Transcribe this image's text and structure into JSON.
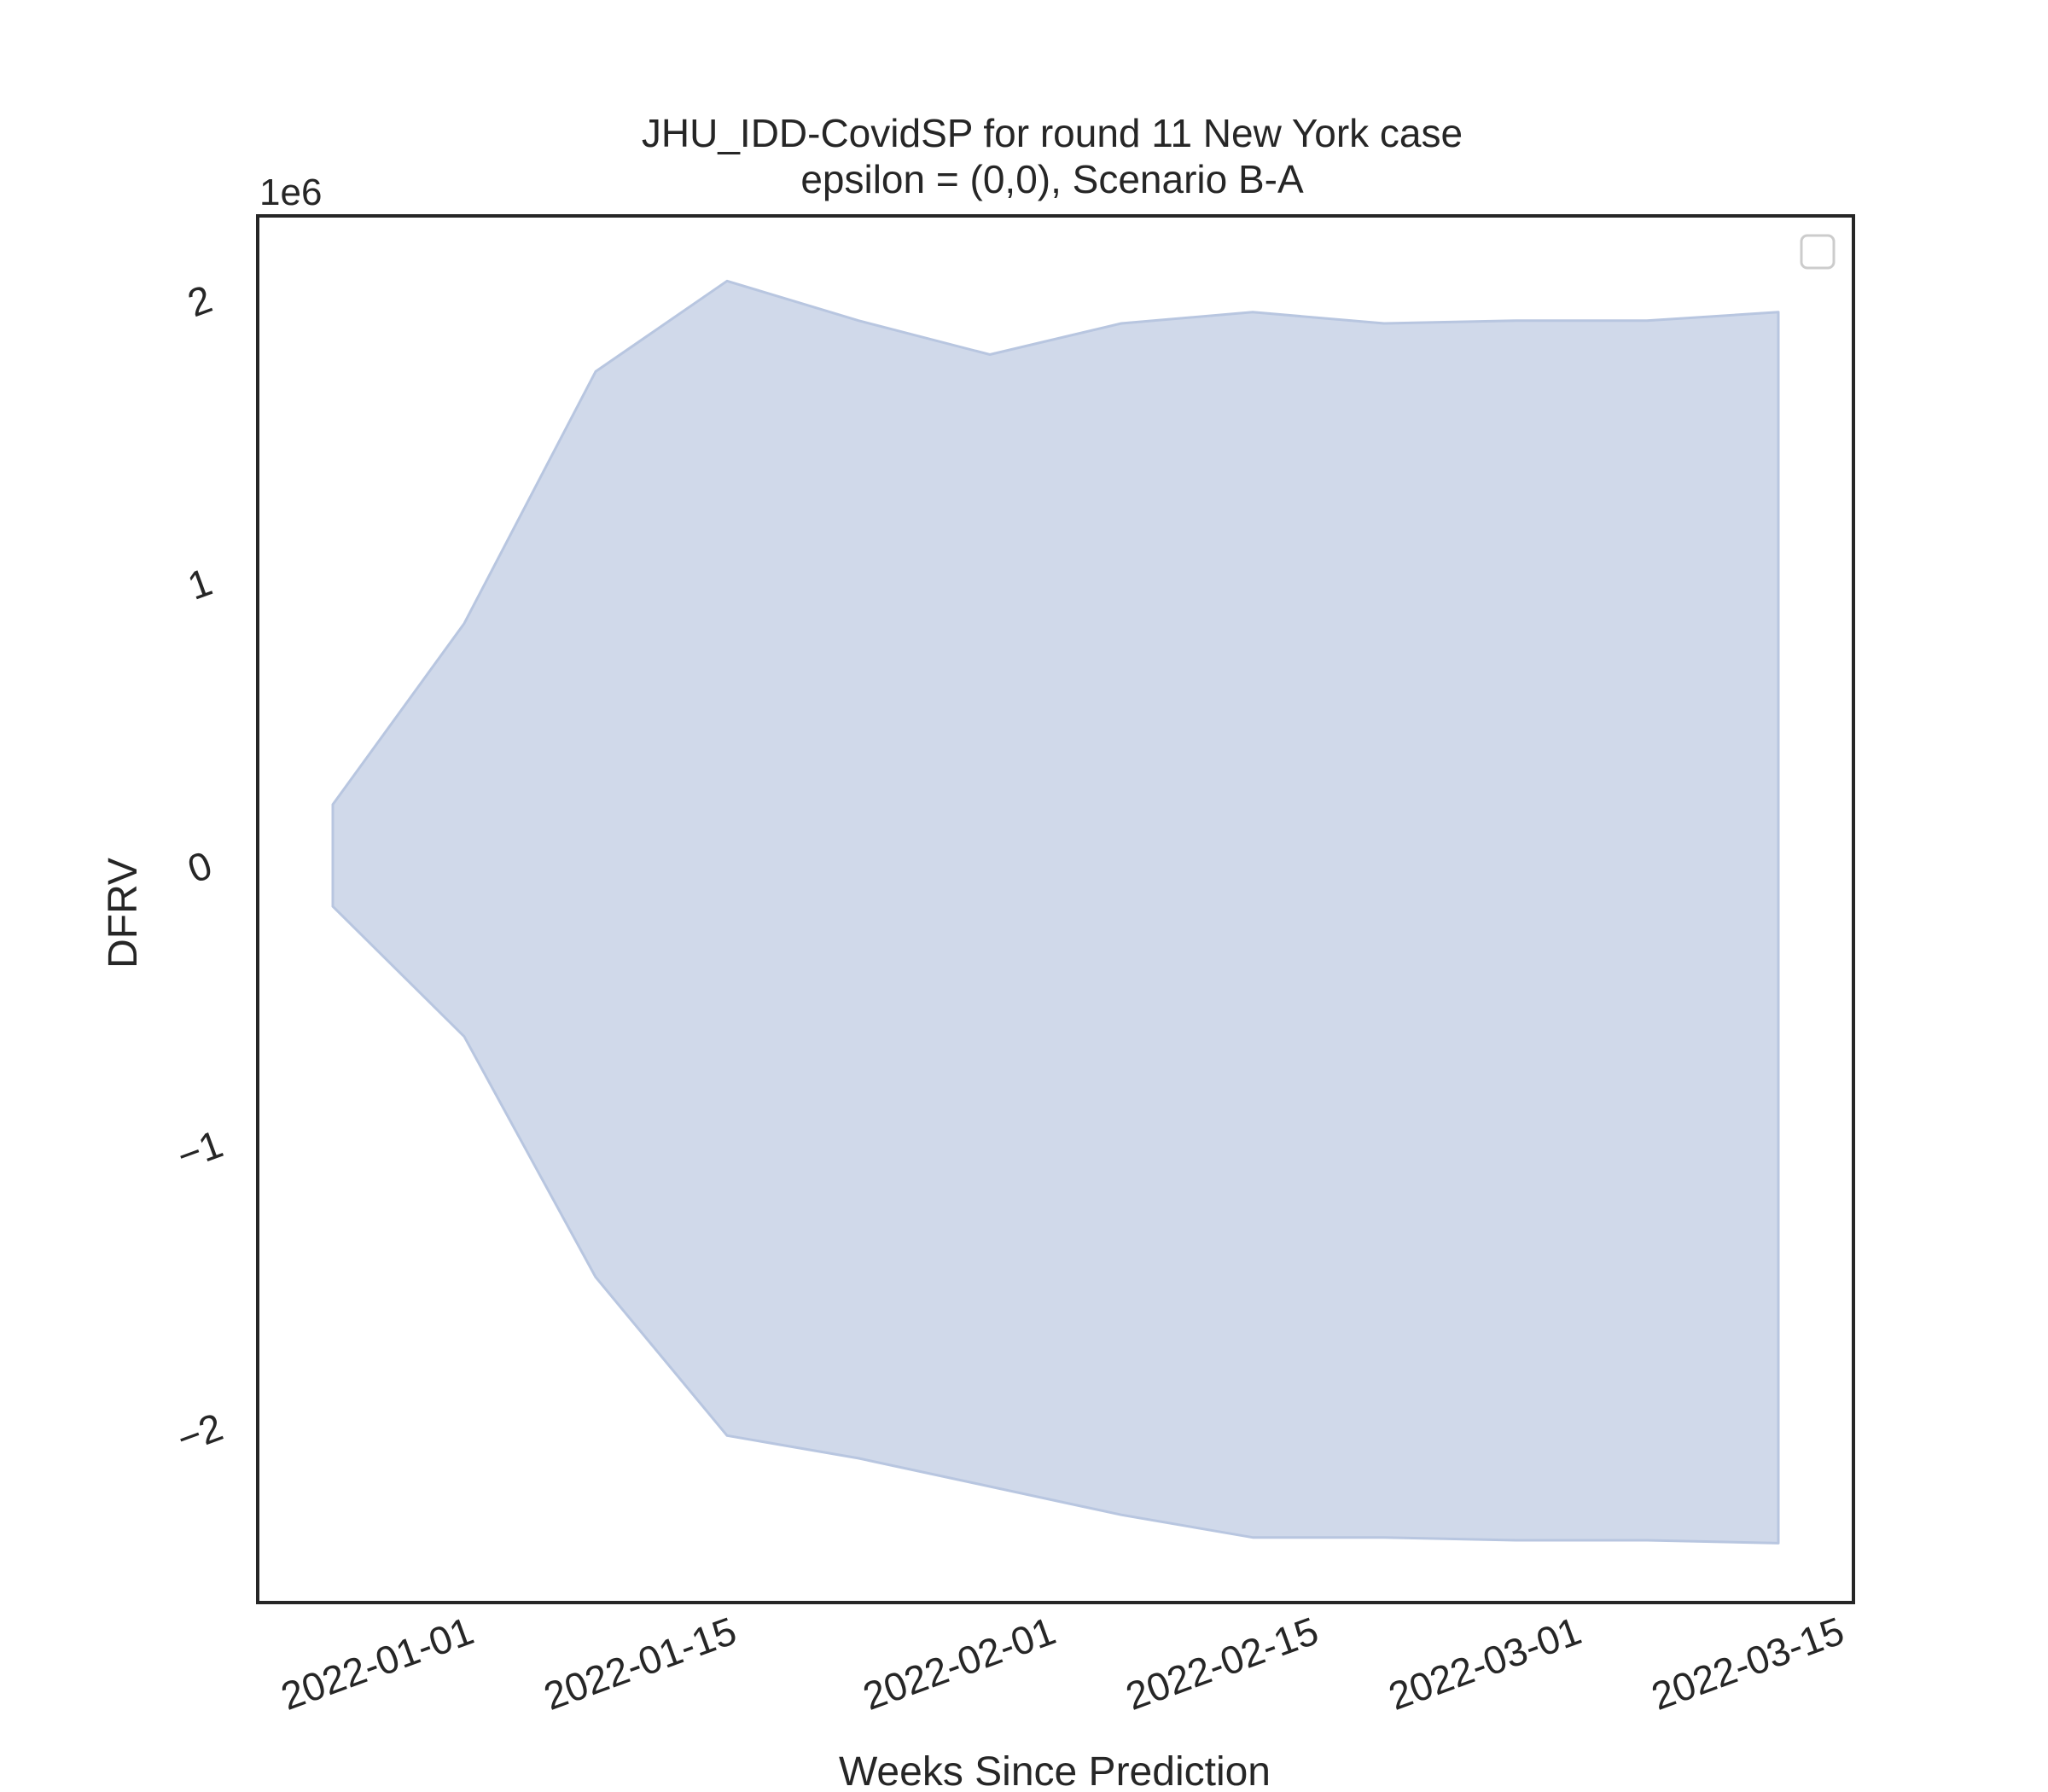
{
  "chart_data": {
    "type": "area",
    "title": "JHU_IDD-CovidSP for round 11 New York case",
    "subtitle": "epsilon = (0,0), Scenario B-A",
    "xlabel": "Weeks Since Prediction",
    "ylabel": "DFRV",
    "y_offset_label": "1e6",
    "x_ticks": [
      "2022-01-01",
      "2022-01-15",
      "2022-02-01",
      "2022-02-15",
      "2022-03-01",
      "2022-03-15"
    ],
    "y_ticks": [
      -2,
      1,
      0,
      -1,
      2
    ],
    "y_tick_labels": [
      "−2",
      "1",
      "0",
      "−1",
      "2"
    ],
    "xlim": [
      "2021-12-21",
      "2022-03-16"
    ],
    "ylim": [
      -2.6,
      2.3
    ],
    "legend": {
      "placement": "top-right",
      "entries": []
    },
    "grid": false,
    "fill_color": "#d0d9ea",
    "edge_color": "#b8c6e0",
    "series": [
      {
        "x": [
          "2021-12-25",
          "2022-01-01",
          "2022-01-08",
          "2022-01-15",
          "2022-01-22",
          "2022-01-29",
          "2022-02-05",
          "2022-02-12",
          "2022-02-19",
          "2022-02-26",
          "2022-03-05",
          "2022-03-12"
        ],
        "upper": [
          0.22,
          0.86,
          1.75,
          2.07,
          1.93,
          1.81,
          1.92,
          1.96,
          1.92,
          1.93,
          1.93,
          1.96
        ],
        "lower": [
          -0.14,
          -0.6,
          -1.45,
          -2.01,
          -2.09,
          -2.19,
          -2.29,
          -2.37,
          -2.37,
          -2.38,
          -2.38,
          -2.39
        ]
      }
    ]
  }
}
